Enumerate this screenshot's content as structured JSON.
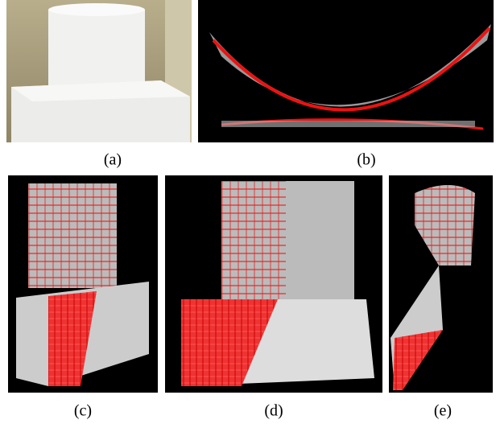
{
  "figure": {
    "captions": [
      "(a)",
      "(b)",
      "(c)",
      "(d)",
      "(e)"
    ]
  }
}
